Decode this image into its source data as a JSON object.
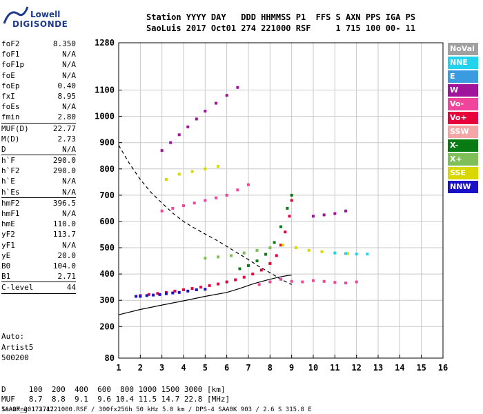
{
  "logo": {
    "top": "Lowell",
    "bottom": "DIGISONDE"
  },
  "header": {
    "line1": "Station YYYY DAY   DDD HHMMSS P1  FFS S AXN PPS IGA PS",
    "line2": "SaoLuis 2017 Oct01 274 221000 RSF     1 715 100 00- 11"
  },
  "params": {
    "group1": [
      {
        "name": "foF2",
        "value": "8.350"
      },
      {
        "name": "foF1",
        "value": "N/A"
      },
      {
        "name": "foF1p",
        "value": "N/A"
      },
      {
        "name": "foE",
        "value": "N/A"
      },
      {
        "name": "foEp",
        "value": "0.40"
      },
      {
        "name": "fxI",
        "value": "8.95"
      },
      {
        "name": "foEs",
        "value": "N/A"
      },
      {
        "name": "fmin",
        "value": "2.80"
      }
    ],
    "group2": [
      {
        "name": "MUF(D)",
        "value": "22.77"
      },
      {
        "name": "M(D)",
        "value": "2.73"
      },
      {
        "name": "D",
        "value": "N/A"
      }
    ],
    "group3": [
      {
        "name": "h`F",
        "value": "290.0"
      },
      {
        "name": "h`F2",
        "value": "290.0"
      },
      {
        "name": "h`E",
        "value": "N/A"
      },
      {
        "name": "h`Es",
        "value": "N/A"
      }
    ],
    "group4": [
      {
        "name": "hmF2",
        "value": "396.5"
      },
      {
        "name": "hmF1",
        "value": "N/A"
      },
      {
        "name": "hmE",
        "value": "110.0"
      },
      {
        "name": "yF2",
        "value": "113.7"
      },
      {
        "name": "yF1",
        "value": "N/A"
      },
      {
        "name": "yE",
        "value": "20.0"
      },
      {
        "name": "B0",
        "value": "104.0"
      },
      {
        "name": "B1",
        "value": "2.71"
      }
    ],
    "group5": [
      {
        "name": "C-level",
        "value": "44"
      }
    ]
  },
  "auto": {
    "line1": "Auto:",
    "line2": "Artist5",
    "line3": "500200"
  },
  "footer": {
    "d_row": "D     100  200  400  600  800 1000 1500 3000 [km]",
    "muf_row": "MUF   8.7  8.8  9.1  9.6 10.4 11.5 14.7 22.8 [MHz]",
    "file": "SAA0K_2017274221000.RSF / 300fx256h 50 kHz 5.0 km / DPS-4 SAA0K 903 / 2.6 S 315.8 E",
    "version": "Ion2Png 1.3.17"
  },
  "legend": [
    {
      "label": "NoVal",
      "color": "#a0a0a0"
    },
    {
      "label": "NNE",
      "color": "#22d3ee"
    },
    {
      "label": "E",
      "color": "#3b9be0"
    },
    {
      "label": "W",
      "color": "#a0149c"
    },
    {
      "label": "Vo-",
      "color": "#f0459a"
    },
    {
      "label": "Vo+",
      "color": "#e8003a"
    },
    {
      "label": "SSW",
      "color": "#f4a6a6"
    },
    {
      "label": "X-",
      "color": "#0a7a12"
    },
    {
      "label": "X+",
      "color": "#7fbf58"
    },
    {
      "label": "SSE",
      "color": "#d8d800"
    },
    {
      "label": "NNW",
      "color": "#1a10c8"
    }
  ],
  "chart_data": {
    "type": "scatter",
    "xlabel": "",
    "ylabel": "",
    "xlim": [
      1,
      16
    ],
    "ylim": [
      80,
      1280
    ],
    "x_ticks": [
      1,
      2,
      3,
      4,
      5,
      6,
      7,
      8,
      9,
      10,
      11,
      12,
      13,
      14,
      15,
      16
    ],
    "y_ticks": [
      80,
      200,
      300,
      400,
      500,
      600,
      700,
      800,
      900,
      1000,
      1100,
      1280
    ],
    "grid": true,
    "series": [
      {
        "name": "Vo+",
        "color": "#e8003a",
        "x": [
          2.0,
          2.4,
          2.8,
          3.2,
          3.6,
          4.0,
          4.4,
          4.8,
          5.2,
          5.6,
          6.0,
          6.4,
          6.8,
          7.2,
          7.6,
          8.0,
          8.3,
          8.5,
          8.7,
          8.9,
          9.0
        ],
        "y": [
          318,
          322,
          326,
          330,
          335,
          340,
          345,
          350,
          356,
          362,
          370,
          378,
          388,
          400,
          415,
          440,
          470,
          510,
          560,
          620,
          680
        ]
      },
      {
        "name": "X-",
        "color": "#0a7a12",
        "x": [
          6.6,
          7.0,
          7.4,
          7.8,
          8.2,
          8.5,
          8.8,
          9.0
        ],
        "y": [
          420,
          432,
          450,
          475,
          520,
          580,
          650,
          700
        ]
      },
      {
        "name": "W",
        "color": "#a0149c",
        "x": [
          3.0,
          3.4,
          3.8,
          4.2,
          4.6,
          5.0,
          5.5,
          6.0,
          6.5,
          10.0,
          10.5,
          11.0,
          11.5
        ],
        "y": [
          870,
          900,
          930,
          960,
          990,
          1020,
          1050,
          1080,
          1110,
          620,
          625,
          630,
          640
        ]
      },
      {
        "name": "SSE",
        "color": "#d8d800",
        "x": [
          3.2,
          3.8,
          4.4,
          5.0,
          5.6,
          6.2,
          6.8,
          7.4,
          8.0,
          8.6,
          9.2,
          9.8,
          10.4,
          11.0,
          11.6
        ],
        "y": [
          760,
          780,
          790,
          800,
          810,
          470,
          480,
          490,
          500,
          510,
          500,
          490,
          485,
          480,
          478
        ]
      },
      {
        "name": "NNW",
        "color": "#1a10c8",
        "x": [
          1.8,
          2.0,
          2.3,
          2.6,
          2.9,
          3.2,
          3.5,
          3.8,
          4.2,
          4.6,
          5.0
        ],
        "y": [
          315,
          315,
          318,
          320,
          322,
          325,
          328,
          330,
          335,
          340,
          342
        ]
      },
      {
        "name": "Vo-",
        "color": "#f0459a",
        "x": [
          3.0,
          3.5,
          4.0,
          4.5,
          5.0,
          5.5,
          6.0,
          6.5,
          7.0,
          7.5,
          8.0,
          8.5,
          9.0,
          9.5,
          10.0,
          10.5,
          11.0,
          11.5,
          12.0
        ],
        "y": [
          640,
          650,
          660,
          670,
          680,
          690,
          700,
          720,
          740,
          360,
          370,
          380,
          372,
          370,
          375,
          372,
          368,
          366,
          370
        ]
      },
      {
        "name": "NNE",
        "color": "#22d3ee",
        "x": [
          11.0,
          11.5,
          12.0,
          12.5
        ],
        "y": [
          480,
          478,
          476,
          476
        ]
      },
      {
        "name": "X+",
        "color": "#7fbf58",
        "x": [
          5.0,
          5.6,
          6.2,
          6.8,
          7.4,
          8.0
        ],
        "y": [
          460,
          465,
          470,
          480,
          490,
          500
        ]
      }
    ],
    "model_curves": {
      "solid_profile": {
        "x": [
          1,
          2,
          3,
          4,
          5,
          6,
          6.6,
          7.2,
          7.8,
          8.4,
          8.8,
          9.0
        ],
        "y": [
          245,
          265,
          282,
          298,
          315,
          330,
          345,
          362,
          376,
          388,
          394,
          396
        ]
      },
      "dashed_muf": {
        "x": [
          1,
          1.5,
          2,
          2.5,
          3,
          3.5,
          4,
          4.5,
          5,
          5.5,
          6,
          6.5,
          7,
          7.5,
          8,
          8.5,
          9
        ],
        "y": [
          890,
          820,
          760,
          710,
          670,
          632,
          600,
          575,
          552,
          530,
          505,
          480,
          455,
          428,
          405,
          380,
          360
        ]
      }
    }
  }
}
